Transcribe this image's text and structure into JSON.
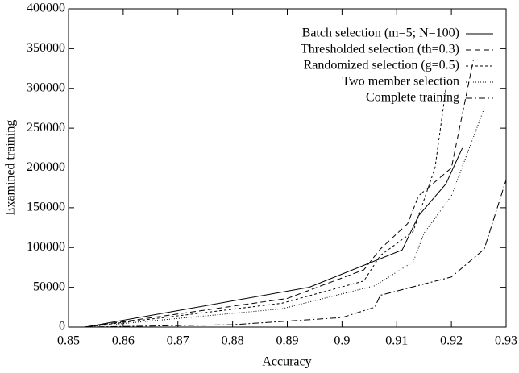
{
  "chart_data": {
    "type": "line",
    "x_label": "Accuracy",
    "y_label": "Examined training",
    "xlim": [
      0.85,
      0.93
    ],
    "xticks": [
      0.85,
      0.86,
      0.87,
      0.88,
      0.89,
      0.9,
      0.91,
      0.92,
      0.93
    ],
    "ylim": [
      0,
      400000
    ],
    "yticks": [
      0,
      50000,
      100000,
      150000,
      200000,
      250000,
      300000,
      350000,
      400000
    ],
    "legend": "top-right",
    "series": [
      {
        "name": "Batch selection (m=5; N=100)",
        "color": "#000000",
        "dash": "none",
        "x": [
          0.853,
          0.894,
          0.911,
          0.914,
          0.919,
          0.922
        ],
        "values": [
          0,
          50000,
          97000,
          140000,
          180000,
          225000
        ]
      },
      {
        "name": "Thresholded selection (th=0.3)",
        "color": "#000000",
        "dash": "7,4",
        "x": [
          0.853,
          0.89,
          0.904,
          0.907,
          0.912,
          0.914,
          0.92,
          0.924
        ],
        "values": [
          0,
          36000,
          72000,
          98000,
          130000,
          165000,
          200000,
          335000
        ]
      },
      {
        "name": "Randomized selection (g=0.5)",
        "color": "#000000",
        "dash": "3,3",
        "x": [
          0.853,
          0.889,
          0.904,
          0.907,
          0.913,
          0.917,
          0.919
        ],
        "values": [
          0,
          30000,
          58000,
          90000,
          120000,
          200000,
          300000
        ]
      },
      {
        "name": "Two member selection",
        "color": "#000000",
        "dash": "1,2",
        "x": [
          0.853,
          0.889,
          0.906,
          0.913,
          0.915,
          0.92,
          0.926
        ],
        "values": [
          0,
          23000,
          52000,
          82000,
          118000,
          165000,
          275000
        ]
      },
      {
        "name": "Complete training",
        "color": "#000000",
        "dash": "8,3,2,3",
        "x": [
          0.853,
          0.88,
          0.9,
          0.906,
          0.907,
          0.92,
          0.926,
          0.93
        ],
        "values": [
          0,
          3000,
          12000,
          25000,
          40000,
          63000,
          98000,
          185000
        ]
      }
    ]
  }
}
